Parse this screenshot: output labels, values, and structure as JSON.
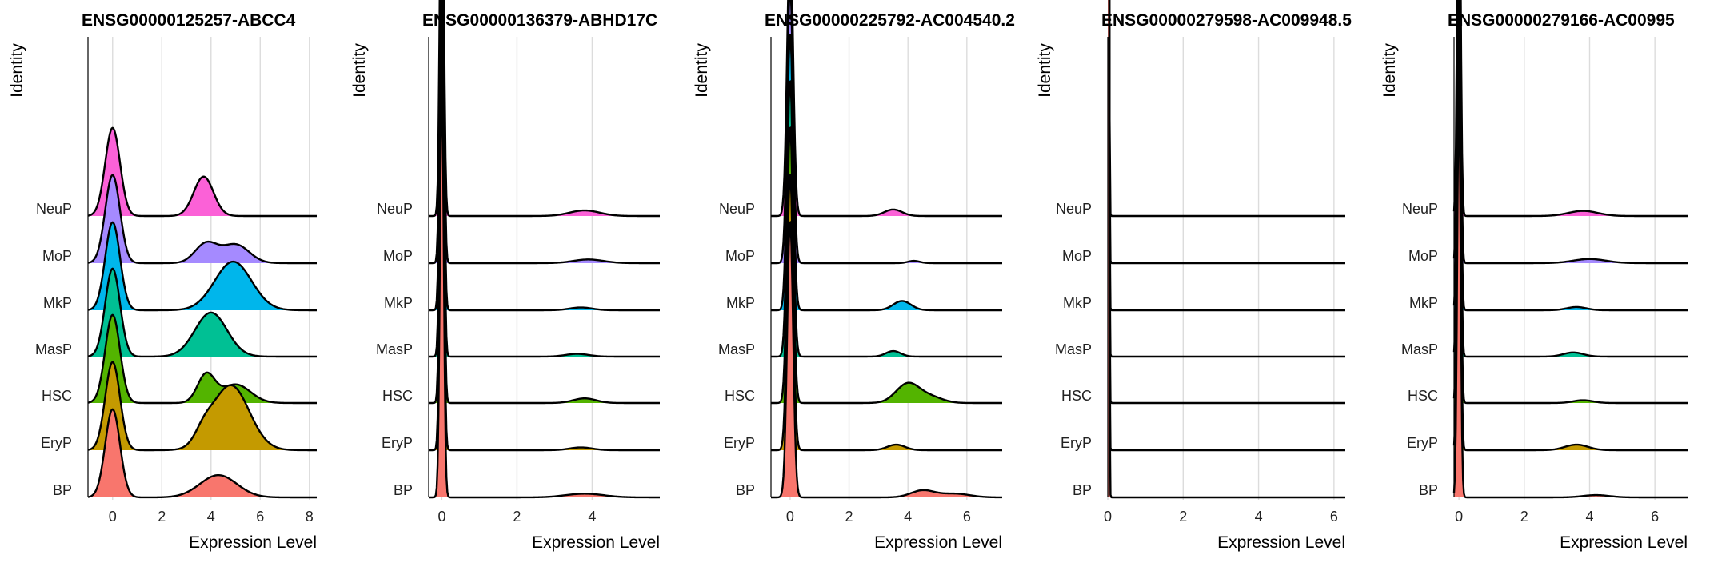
{
  "chart_data": [
    {
      "type": "ridgeline",
      "title": "ENSG00000125257-ABCC4",
      "xlabel": "Expression Level",
      "ylabel": "Identity",
      "xlim": [
        -1.0,
        8.3
      ],
      "xticks": [
        0,
        2,
        4,
        6,
        8
      ],
      "categories": [
        "BP",
        "EryP",
        "HSC",
        "MasP",
        "MkP",
        "MoP",
        "NeuP"
      ],
      "series": [
        {
          "name": "BP",
          "color": "#F8766D",
          "peaks": [
            {
              "x": 0.0,
              "sd": 0.3,
              "h": 1.9
            },
            {
              "x": 4.3,
              "sd": 0.75,
              "h": 0.48
            }
          ]
        },
        {
          "name": "EryP",
          "color": "#C49A00",
          "peaks": [
            {
              "x": 0.0,
              "sd": 0.3,
              "h": 1.9
            },
            {
              "x": 4.8,
              "sd": 0.75,
              "h": 1.4
            },
            {
              "x": 3.7,
              "sd": 0.35,
              "h": 0.25
            }
          ]
        },
        {
          "name": "HSC",
          "color": "#53B400",
          "peaks": [
            {
              "x": 0.0,
              "sd": 0.3,
              "h": 1.9
            },
            {
              "x": 3.8,
              "sd": 0.35,
              "h": 0.6
            },
            {
              "x": 5.0,
              "sd": 0.6,
              "h": 0.4
            }
          ]
        },
        {
          "name": "MasP",
          "color": "#00C094",
          "peaks": [
            {
              "x": 0.0,
              "sd": 0.3,
              "h": 1.9
            },
            {
              "x": 4.0,
              "sd": 0.65,
              "h": 0.95
            }
          ]
        },
        {
          "name": "MkP",
          "color": "#00B6EB",
          "peaks": [
            {
              "x": 0.0,
              "sd": 0.3,
              "h": 1.9
            },
            {
              "x": 4.9,
              "sd": 0.75,
              "h": 1.05
            }
          ]
        },
        {
          "name": "MoP",
          "color": "#A58AFF",
          "peaks": [
            {
              "x": 0.0,
              "sd": 0.3,
              "h": 1.9
            },
            {
              "x": 3.8,
              "sd": 0.45,
              "h": 0.42
            },
            {
              "x": 5.0,
              "sd": 0.55,
              "h": 0.4
            }
          ]
        },
        {
          "name": "NeuP",
          "color": "#FB61D7",
          "peaks": [
            {
              "x": 0.0,
              "sd": 0.3,
              "h": 1.9
            },
            {
              "x": 3.7,
              "sd": 0.4,
              "h": 0.85
            }
          ]
        }
      ]
    },
    {
      "type": "ridgeline",
      "title": "ENSG00000136379-ABHD17C",
      "xlabel": "Expression Level",
      "ylabel": "Identity",
      "xlim": [
        -0.35,
        5.8
      ],
      "xticks": [
        0,
        2,
        4
      ],
      "categories": [
        "BP",
        "EryP",
        "HSC",
        "MasP",
        "MkP",
        "MoP",
        "NeuP"
      ],
      "series": [
        {
          "name": "BP",
          "color": "#F8766D",
          "peaks": [
            {
              "x": 0.0,
              "sd": 0.05,
              "h": 9.0
            },
            {
              "x": 3.8,
              "sd": 0.5,
              "h": 0.08
            }
          ]
        },
        {
          "name": "EryP",
          "color": "#C49A00",
          "peaks": [
            {
              "x": 0.0,
              "sd": 0.05,
              "h": 9.0
            },
            {
              "x": 3.7,
              "sd": 0.3,
              "h": 0.06
            }
          ]
        },
        {
          "name": "HSC",
          "color": "#53B400",
          "peaks": [
            {
              "x": 0.0,
              "sd": 0.05,
              "h": 9.0
            },
            {
              "x": 3.8,
              "sd": 0.3,
              "h": 0.1
            }
          ]
        },
        {
          "name": "MasP",
          "color": "#00C094",
          "peaks": [
            {
              "x": 0.0,
              "sd": 0.05,
              "h": 9.0
            },
            {
              "x": 3.6,
              "sd": 0.3,
              "h": 0.06
            }
          ]
        },
        {
          "name": "MkP",
          "color": "#00B6EB",
          "peaks": [
            {
              "x": 0.0,
              "sd": 0.05,
              "h": 9.0
            },
            {
              "x": 3.7,
              "sd": 0.3,
              "h": 0.06
            }
          ]
        },
        {
          "name": "MoP",
          "color": "#A58AFF",
          "peaks": [
            {
              "x": 0.0,
              "sd": 0.05,
              "h": 9.0
            },
            {
              "x": 3.9,
              "sd": 0.4,
              "h": 0.08
            }
          ]
        },
        {
          "name": "NeuP",
          "color": "#FB61D7",
          "peaks": [
            {
              "x": 0.0,
              "sd": 0.05,
              "h": 9.0
            },
            {
              "x": 3.8,
              "sd": 0.4,
              "h": 0.12
            }
          ]
        }
      ]
    },
    {
      "type": "ridgeline",
      "title": "ENSG00000225792-AC004540.2",
      "xlabel": "Expression Level",
      "ylabel": "Identity",
      "xlim": [
        -0.65,
        7.2
      ],
      "xticks": [
        0,
        2,
        4,
        6
      ],
      "categories": [
        "BP",
        "EryP",
        "HSC",
        "MasP",
        "MkP",
        "MoP",
        "NeuP"
      ],
      "series": [
        {
          "name": "BP",
          "color": "#F8766D",
          "peaks": [
            {
              "x": 0.0,
              "sd": 0.1,
              "h": 6.0
            },
            {
              "x": 4.5,
              "sd": 0.4,
              "h": 0.15
            },
            {
              "x": 5.6,
              "sd": 0.5,
              "h": 0.08
            }
          ]
        },
        {
          "name": "EryP",
          "color": "#C49A00",
          "peaks": [
            {
              "x": 0.0,
              "sd": 0.1,
              "h": 6.0
            },
            {
              "x": 3.6,
              "sd": 0.3,
              "h": 0.12
            }
          ]
        },
        {
          "name": "HSC",
          "color": "#53B400",
          "peaks": [
            {
              "x": 0.0,
              "sd": 0.1,
              "h": 6.0
            },
            {
              "x": 4.0,
              "sd": 0.4,
              "h": 0.42
            },
            {
              "x": 4.8,
              "sd": 0.4,
              "h": 0.12
            }
          ]
        },
        {
          "name": "MasP",
          "color": "#00C094",
          "peaks": [
            {
              "x": 0.0,
              "sd": 0.1,
              "h": 6.0
            },
            {
              "x": 3.5,
              "sd": 0.25,
              "h": 0.12
            }
          ]
        },
        {
          "name": "MkP",
          "color": "#00B6EB",
          "peaks": [
            {
              "x": 0.0,
              "sd": 0.1,
              "h": 6.0
            },
            {
              "x": 3.8,
              "sd": 0.3,
              "h": 0.2
            }
          ]
        },
        {
          "name": "MoP",
          "color": "#A58AFF",
          "peaks": [
            {
              "x": 0.0,
              "sd": 0.1,
              "h": 6.0
            },
            {
              "x": 4.2,
              "sd": 0.2,
              "h": 0.05
            }
          ]
        },
        {
          "name": "NeuP",
          "color": "#FB61D7",
          "peaks": [
            {
              "x": 0.0,
              "sd": 0.1,
              "h": 6.0
            },
            {
              "x": 3.5,
              "sd": 0.3,
              "h": 0.14
            }
          ]
        }
      ]
    },
    {
      "type": "ridgeline",
      "title": "ENSG00000279598-AC009948.5",
      "xlabel": "Expression Level",
      "ylabel": "Identity",
      "xlim": [
        0.0,
        6.3
      ],
      "xticks": [
        0,
        2,
        4,
        6
      ],
      "categories": [
        "BP",
        "EryP",
        "HSC",
        "MasP",
        "MkP",
        "MoP",
        "NeuP"
      ],
      "series": [
        {
          "name": "BP",
          "color": "#F8766D",
          "peaks": [
            {
              "x": 0.0,
              "sd": 0.02,
              "h": 40.0
            }
          ]
        },
        {
          "name": "EryP",
          "color": "#C49A00",
          "peaks": [
            {
              "x": 0.0,
              "sd": 0.02,
              "h": 40.0
            }
          ]
        },
        {
          "name": "HSC",
          "color": "#53B400",
          "peaks": [
            {
              "x": 0.0,
              "sd": 0.02,
              "h": 40.0
            }
          ]
        },
        {
          "name": "MasP",
          "color": "#00C094",
          "peaks": [
            {
              "x": 0.0,
              "sd": 0.02,
              "h": 40.0
            }
          ]
        },
        {
          "name": "MkP",
          "color": "#00B6EB",
          "peaks": [
            {
              "x": 0.0,
              "sd": 0.02,
              "h": 40.0
            }
          ]
        },
        {
          "name": "MoP",
          "color": "#A58AFF",
          "peaks": [
            {
              "x": 0.0,
              "sd": 0.02,
              "h": 40.0
            }
          ]
        },
        {
          "name": "NeuP",
          "color": "#FB61D7",
          "peaks": [
            {
              "x": 0.0,
              "sd": 0.02,
              "h": 40.0
            }
          ]
        }
      ]
    },
    {
      "type": "ridgeline",
      "title": "ENSG00000279166-AC00995",
      "xlabel": "Expression Level",
      "ylabel": "Identity",
      "xlim": [
        -0.15,
        7.0
      ],
      "xticks": [
        0,
        2,
        4,
        6
      ],
      "categories": [
        "BP",
        "EryP",
        "HSC",
        "MasP",
        "MkP",
        "MoP",
        "NeuP"
      ],
      "series": [
        {
          "name": "BP",
          "color": "#F8766D",
          "peaks": [
            {
              "x": 0.0,
              "sd": 0.05,
              "h": 9.0
            },
            {
              "x": 4.2,
              "sd": 0.4,
              "h": 0.05
            }
          ]
        },
        {
          "name": "EryP",
          "color": "#C49A00",
          "peaks": [
            {
              "x": 0.0,
              "sd": 0.05,
              "h": 9.0
            },
            {
              "x": 3.6,
              "sd": 0.35,
              "h": 0.12
            }
          ]
        },
        {
          "name": "HSC",
          "color": "#53B400",
          "peaks": [
            {
              "x": 0.0,
              "sd": 0.05,
              "h": 9.0
            },
            {
              "x": 3.8,
              "sd": 0.3,
              "h": 0.06
            }
          ]
        },
        {
          "name": "MasP",
          "color": "#00C094",
          "peaks": [
            {
              "x": 0.0,
              "sd": 0.05,
              "h": 9.0
            },
            {
              "x": 3.5,
              "sd": 0.3,
              "h": 0.09
            }
          ]
        },
        {
          "name": "MkP",
          "color": "#00B6EB",
          "peaks": [
            {
              "x": 0.0,
              "sd": 0.05,
              "h": 9.0
            },
            {
              "x": 3.6,
              "sd": 0.3,
              "h": 0.07
            }
          ]
        },
        {
          "name": "MoP",
          "color": "#A58AFF",
          "peaks": [
            {
              "x": 0.0,
              "sd": 0.05,
              "h": 9.0
            },
            {
              "x": 4.0,
              "sd": 0.5,
              "h": 0.09
            }
          ]
        },
        {
          "name": "NeuP",
          "color": "#FB61D7",
          "peaks": [
            {
              "x": 0.0,
              "sd": 0.05,
              "h": 9.0
            },
            {
              "x": 3.8,
              "sd": 0.45,
              "h": 0.11
            }
          ]
        }
      ]
    }
  ]
}
